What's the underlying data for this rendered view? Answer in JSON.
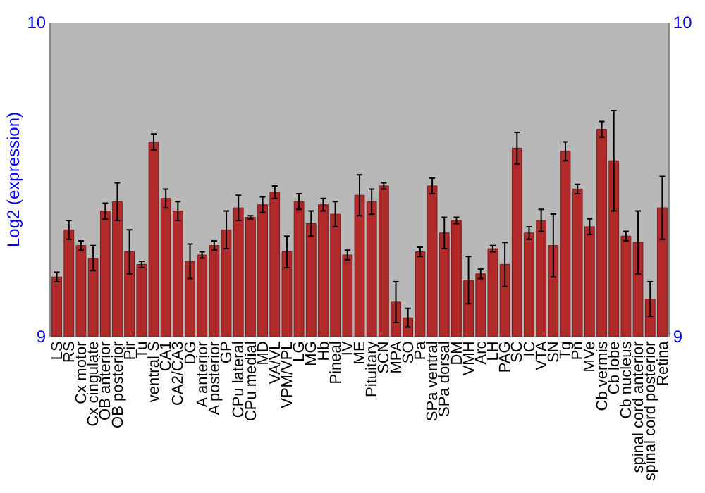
{
  "chart_data": {
    "type": "bar",
    "ylabel": "Log2 (expression)",
    "categories": [
      "LS",
      "RS",
      "Cx motor",
      "Cx cingulate",
      "OB anterior",
      "OB posterior",
      "Pir",
      "Tu",
      "ventral S",
      "CA1",
      "CA2/CA3",
      "DG",
      "A anterior",
      "A posterior",
      "GP",
      "CPu lateral",
      "CPu medial",
      "MD",
      "VA/VL",
      "VPM/VPL",
      "LG",
      "MG",
      "Hb",
      "Pineal",
      "IV",
      "ME",
      "Pituitary",
      "SCN",
      "MPA",
      "SO",
      "Pa",
      "SPa ventral",
      "SPa dorsal",
      "DM",
      "VMH",
      "Arc",
      "LH",
      "PAG",
      "SC",
      "IC",
      "VTA",
      "SN",
      "Tg",
      "Pn",
      "MVe",
      "Cb vermis",
      "Cb lobe",
      "Cb nucleus",
      "spinal cord anterior",
      "spinal cord posterior",
      "Retina"
    ],
    "values": [
      9.19,
      9.34,
      9.29,
      9.25,
      9.4,
      9.43,
      9.27,
      9.23,
      9.62,
      9.44,
      9.4,
      9.24,
      9.26,
      9.29,
      9.34,
      9.41,
      9.38,
      9.42,
      9.46,
      9.27,
      9.43,
      9.36,
      9.42,
      9.39,
      9.26,
      9.45,
      9.43,
      9.48,
      9.11,
      9.06,
      9.27,
      9.48,
      9.33,
      9.37,
      9.18,
      9.2,
      9.28,
      9.23,
      9.6,
      9.33,
      9.37,
      9.29,
      9.59,
      9.47,
      9.35,
      9.66,
      9.56,
      9.32,
      9.3,
      9.12,
      9.41
    ],
    "errors": [
      0.015,
      0.03,
      0.015,
      0.04,
      0.025,
      0.06,
      0.07,
      0.01,
      0.025,
      0.03,
      0.03,
      0.055,
      0.01,
      0.015,
      0.06,
      0.04,
      0.005,
      0.025,
      0.02,
      0.05,
      0.025,
      0.04,
      0.02,
      0.04,
      0.015,
      0.065,
      0.04,
      0.01,
      0.065,
      0.03,
      0.015,
      0.025,
      0.05,
      0.01,
      0.075,
      0.015,
      0.01,
      0.07,
      0.05,
      0.02,
      0.035,
      0.1,
      0.03,
      0.015,
      0.025,
      0.025,
      0.16,
      0.015,
      0.1,
      0.055,
      0.1
    ],
    "color": "#b02a2a",
    "ylim": [
      9,
      10
    ],
    "yticks": [
      9,
      10
    ],
    "y2lim": [
      9,
      10
    ],
    "y2ticks": [
      9,
      10
    ]
  }
}
